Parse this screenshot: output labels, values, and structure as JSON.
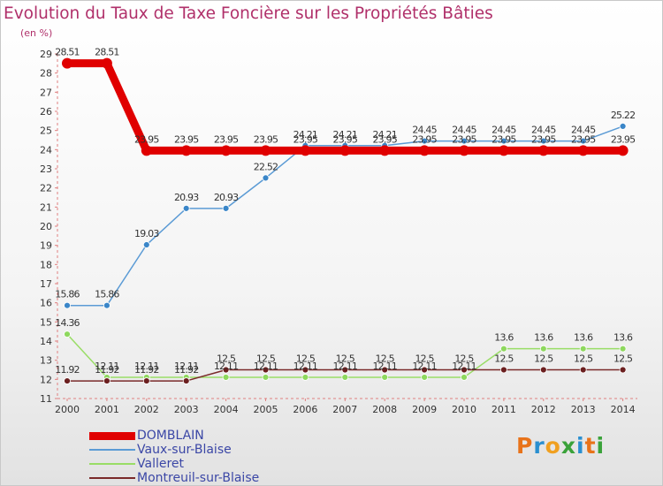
{
  "chart_data": {
    "type": "line",
    "title": "Evolution du Taux de Taxe Foncière sur les Propriétés Bâties",
    "ylabel": "(en %)",
    "xlabel": "",
    "categories": [
      "2000",
      "2001",
      "2002",
      "2003",
      "2004",
      "2005",
      "2006",
      "2007",
      "2008",
      "2009",
      "2010",
      "2011",
      "2012",
      "2013",
      "2014"
    ],
    "ylim": [
      11,
      29
    ],
    "yticks": [
      "11",
      "12",
      "13",
      "14",
      "15",
      "16",
      "17",
      "18",
      "19",
      "20",
      "21",
      "22",
      "23",
      "24",
      "25",
      "26",
      "27",
      "28",
      "29"
    ],
    "series": [
      {
        "name": "DOMBLAIN",
        "color": "#e00000",
        "values": [
          28.51,
          28.51,
          23.95,
          23.95,
          23.95,
          23.95,
          23.95,
          23.95,
          23.95,
          23.95,
          23.95,
          23.95,
          23.95,
          23.95,
          23.95
        ],
        "labels": [
          "28.51",
          "28.51",
          "23.95",
          "23.95",
          "23.95",
          "23.95",
          "23.95",
          "23.95",
          "23.95",
          "23.95",
          "23.95",
          "23.95",
          "23.95",
          "23.95",
          "23.95"
        ]
      },
      {
        "name": "Vaux-sur-Blaise",
        "color": "#5b9bd5",
        "values": [
          15.86,
          15.86,
          19.03,
          20.93,
          20.93,
          22.52,
          24.21,
          24.21,
          24.21,
          24.45,
          24.45,
          24.45,
          24.45,
          24.45,
          25.22
        ],
        "labels": [
          "15.86",
          "15.86",
          "19.03",
          "20.93",
          "20.93",
          "22.52",
          "24.21",
          "24.21",
          "24.21",
          "24.45",
          "24.45",
          "24.45",
          "24.45",
          "24.45",
          "25.22"
        ]
      },
      {
        "name": "Valleret",
        "color": "#99dd66",
        "values": [
          14.36,
          12.11,
          12.11,
          12.11,
          12.11,
          12.11,
          12.11,
          12.11,
          12.11,
          12.11,
          12.11,
          13.6,
          13.6,
          13.6,
          13.6
        ],
        "labels": [
          "14.36",
          "12.11",
          "12.11",
          "12.11",
          "12.11",
          "12.11",
          "12.11",
          "12.11",
          "12.11",
          "12.11",
          "12.11",
          "13.6",
          "13.6",
          "13.6",
          "13.6"
        ]
      },
      {
        "name": "Montreuil-sur-Blaise",
        "color": "#7a2a2a",
        "values": [
          11.92,
          11.92,
          11.92,
          11.92,
          12.5,
          12.5,
          12.5,
          12.5,
          12.5,
          12.5,
          12.5,
          12.5,
          12.5,
          12.5,
          12.5
        ],
        "labels": [
          "11.92",
          "11.92",
          "11.92",
          "11.92",
          "12.5",
          "12.5",
          "12.5",
          "12.5",
          "12.5",
          "12.5",
          "12.5",
          "12.5",
          "12.5",
          "12.5",
          "12.5"
        ]
      }
    ]
  },
  "logo": {
    "text": "Proxiti",
    "colors": [
      "#e8731a",
      "#2a8fd0",
      "#f0a020",
      "#3aa23a",
      "#2a8fd0",
      "#e8731a",
      "#3aa23a"
    ]
  }
}
